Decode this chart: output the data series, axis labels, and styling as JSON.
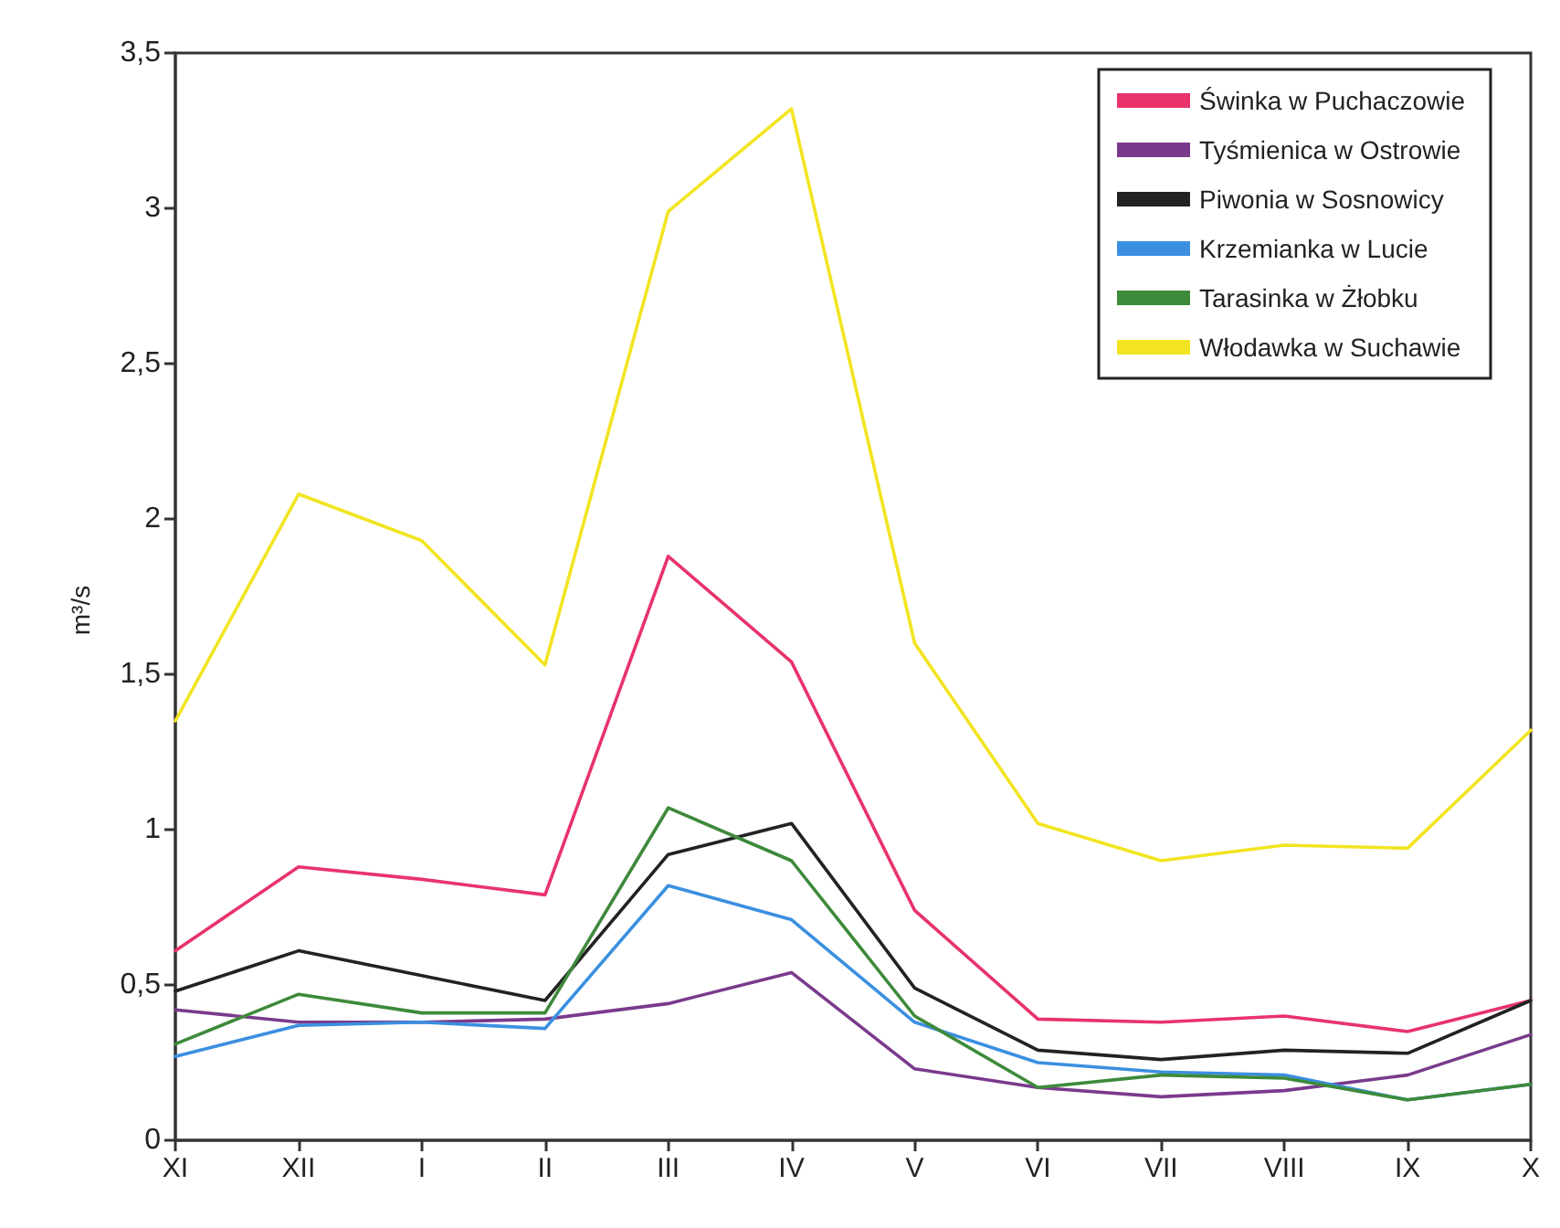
{
  "chart_data": {
    "type": "line",
    "ylabel": "m³/s",
    "categories": [
      "XI",
      "XII",
      "I",
      "II",
      "III",
      "IV",
      "V",
      "VI",
      "VII",
      "VIII",
      "IX",
      "X"
    ],
    "series": [
      {
        "name": "Świnka w Puchaczowie",
        "color": "#e8336b",
        "values": [
          0.61,
          0.88,
          0.84,
          0.79,
          1.88,
          1.54,
          0.74,
          0.39,
          0.38,
          0.4,
          0.35,
          0.45
        ]
      },
      {
        "name": "Tyśmienica w Ostrowie",
        "color": "#7a3a8c",
        "values": [
          0.42,
          0.38,
          0.38,
          0.39,
          0.44,
          0.54,
          0.23,
          0.17,
          0.14,
          0.16,
          0.21,
          0.34
        ]
      },
      {
        "name": "Piwonia w Sosnowicy",
        "color": "#222222",
        "values": [
          0.48,
          0.61,
          0.53,
          0.45,
          0.92,
          1.02,
          0.49,
          0.29,
          0.26,
          0.29,
          0.28,
          0.45
        ]
      },
      {
        "name": "Krzemianka w Lucie",
        "color": "#3b8fe0",
        "values": [
          0.27,
          0.37,
          0.38,
          0.36,
          0.82,
          0.71,
          0.38,
          0.25,
          0.22,
          0.21,
          0.13,
          0.18
        ]
      },
      {
        "name": "Tarasinka w Żłobku",
        "color": "#3d8a3a",
        "values": [
          0.31,
          0.47,
          0.41,
          0.41,
          1.07,
          0.9,
          0.4,
          0.17,
          0.21,
          0.2,
          0.13,
          0.18
        ]
      },
      {
        "name": "Włodawka w Suchawie",
        "color": "#f2e421",
        "values": [
          1.35,
          2.08,
          1.93,
          1.53,
          2.99,
          3.32,
          1.6,
          1.02,
          0.9,
          0.95,
          0.94,
          1.32
        ]
      }
    ],
    "ylim": [
      0,
      3.5
    ],
    "yticks": [
      0,
      {
        "value": 0.5,
        "label": "0,5"
      },
      1,
      {
        "value": 1.5,
        "label": "1,5"
      },
      2,
      {
        "value": 2.5,
        "label": "2,5"
      },
      3,
      {
        "value": 3.5,
        "label": "3,5"
      }
    ],
    "grid": false,
    "legend": "top right",
    "marker": "none",
    "line_style": "solid"
  }
}
